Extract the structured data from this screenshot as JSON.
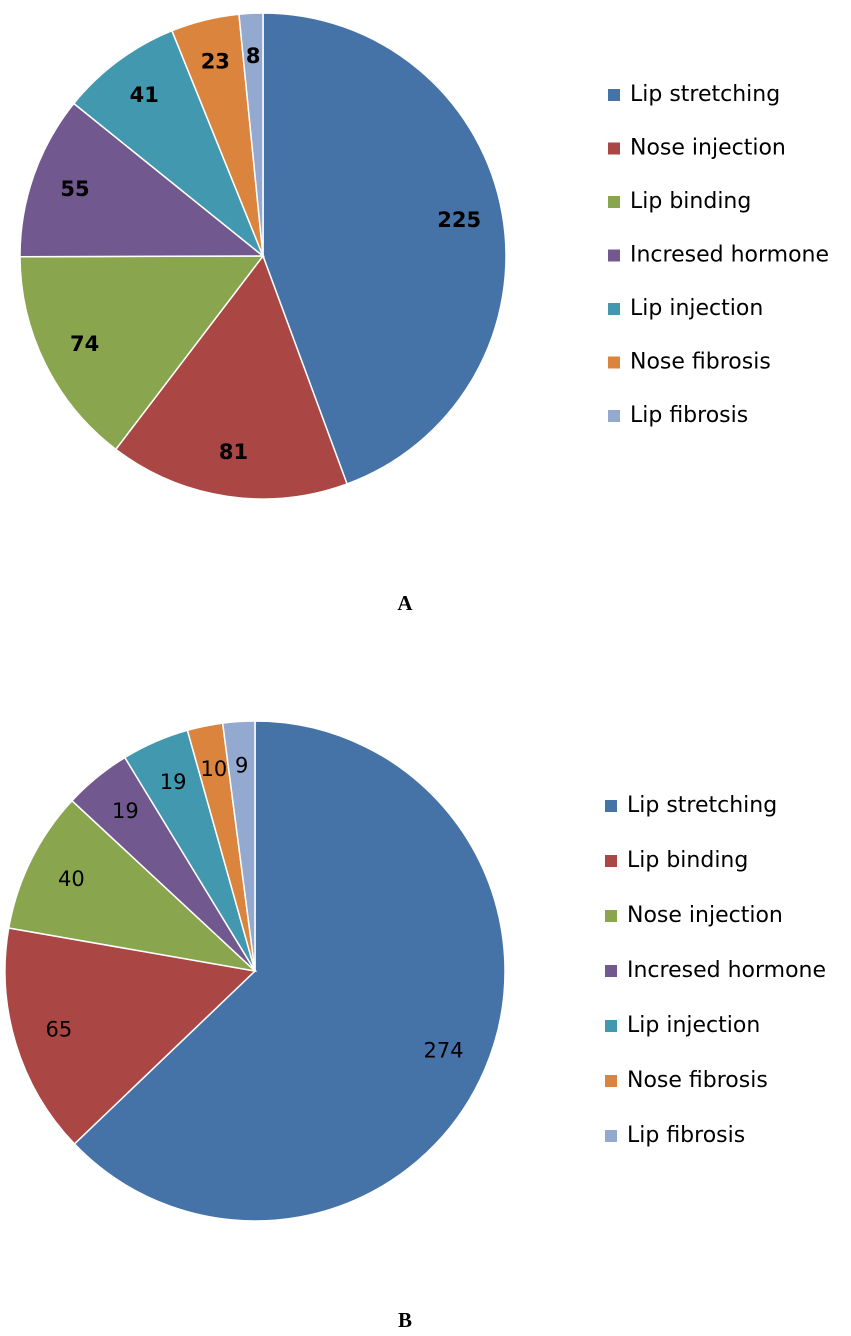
{
  "chart_data": [
    {
      "type": "pie",
      "caption": "A",
      "bold_labels": true,
      "categories": [
        "Lip stretching",
        "Nose injection",
        "Lip binding",
        "Incresed hormone",
        "Lip injection",
        "Nose fibrosis",
        "Lip fibrosis"
      ],
      "values": [
        225,
        81,
        74,
        55,
        41,
        23,
        8
      ],
      "colors": [
        "#4572a7",
        "#aa4643",
        "#89a54e",
        "#71588f",
        "#4198af",
        "#db843d",
        "#93a9cf"
      ]
    },
    {
      "type": "pie",
      "caption": "B",
      "bold_labels": false,
      "categories": [
        "Lip stretching",
        "Lip binding",
        "Nose injection",
        "Incresed hormone",
        "Lip injection",
        "Nose fibrosis",
        "Lip fibrosis"
      ],
      "values": [
        274,
        65,
        40,
        19,
        19,
        10,
        9
      ],
      "colors": [
        "#4572a7",
        "#aa4643",
        "#89a54e",
        "#71588f",
        "#4198af",
        "#db843d",
        "#93a9cf"
      ]
    }
  ]
}
